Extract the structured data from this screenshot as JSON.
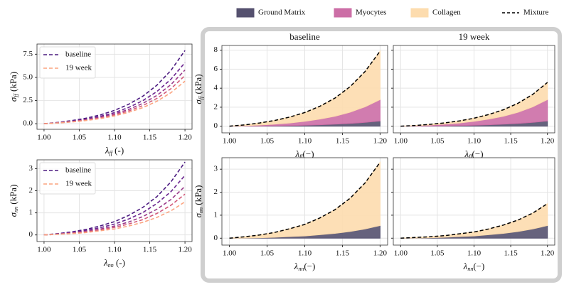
{
  "chart_data": [
    {
      "type": "line",
      "legend": "upper left",
      "x": [
        1,
        1.02,
        1.04,
        1.06,
        1.08,
        1.1,
        1.12,
        1.14,
        1.16,
        1.18,
        1.2
      ],
      "xlim": [
        0.99,
        1.21
      ],
      "ylim": [
        -0.6,
        8.6
      ],
      "xticks": [
        {
          "value": 1,
          "label": "1.00"
        },
        1.05,
        {
          "value": 1.1,
          "label": "1.10"
        },
        1.15,
        {
          "value": 1.2,
          "label": "1.20"
        }
      ],
      "yticks": [
        {
          "value": 0,
          "label": "0.0"
        },
        2.5,
        {
          "value": 5,
          "label": "5.0"
        },
        7.5
      ],
      "xlabel": {
        "base": "λ",
        "sub": "ff",
        "rest": " (-)"
      },
      "ylabel": {
        "base": "σ",
        "sub": "ff",
        "rest": " (kPa)"
      },
      "grid": true,
      "series": [
        {
          "name": "baseline",
          "color": "#4b1a80",
          "values": [
            0,
            0.14,
            0.34,
            0.6,
            0.96,
            1.44,
            2.1,
            2.96,
            4.15,
            5.75,
            7.9
          ]
        },
        {
          "color": "#6b2590",
          "values": [
            0,
            0.12,
            0.28,
            0.5,
            0.81,
            1.2,
            1.75,
            2.48,
            3.47,
            4.8,
            6.6
          ]
        },
        {
          "color": "#9a3a8a",
          "values": [
            0,
            0.1,
            0.25,
            0.44,
            0.71,
            1.06,
            1.54,
            2.18,
            3.05,
            4.22,
            5.8
          ]
        },
        {
          "color": "#d25a7a",
          "values": [
            0,
            0.09,
            0.22,
            0.4,
            0.63,
            0.95,
            1.38,
            1.95,
            2.73,
            3.78,
            5.2
          ]
        },
        {
          "name": "19 week",
          "color": "#fba37f",
          "values": [
            0,
            0.08,
            0.2,
            0.35,
            0.56,
            0.84,
            1.23,
            1.73,
            2.42,
            3.35,
            4.6
          ]
        }
      ]
    },
    {
      "type": "line",
      "legend": "upper left",
      "x": [
        1,
        1.02,
        1.04,
        1.06,
        1.08,
        1.1,
        1.12,
        1.14,
        1.16,
        1.18,
        1.2
      ],
      "xlim": [
        0.99,
        1.21
      ],
      "ylim": [
        -0.3,
        3.4
      ],
      "xticks": [
        {
          "value": 1,
          "label": "1.00"
        },
        1.05,
        {
          "value": 1.1,
          "label": "1.10"
        },
        1.15,
        {
          "value": 1.2,
          "label": "1.20"
        }
      ],
      "yticks": [
        0,
        1,
        2,
        3
      ],
      "xlabel": {
        "base": "λ",
        "sub": "nn",
        "rest": " (-)"
      },
      "ylabel": {
        "base": "σ",
        "sub": "nn",
        "rest": " (kPa)"
      },
      "grid": true,
      "series": [
        {
          "name": "baseline",
          "color": "#4b1a80",
          "values": [
            0,
            0.06,
            0.14,
            0.25,
            0.41,
            0.6,
            0.88,
            1.24,
            1.73,
            2.4,
            3.3
          ]
        },
        {
          "color": "#6b2590",
          "values": [
            0,
            0.05,
            0.12,
            0.21,
            0.33,
            0.49,
            0.72,
            1.01,
            1.42,
            1.96,
            2.7
          ]
        },
        {
          "color": "#9a3a8a",
          "values": [
            0,
            0.04,
            0.09,
            0.17,
            0.27,
            0.4,
            0.58,
            0.83,
            1.16,
            1.6,
            2.2
          ]
        },
        {
          "color": "#d25a7a",
          "values": [
            0,
            0.03,
            0.08,
            0.14,
            0.23,
            0.34,
            0.49,
            0.69,
            0.97,
            1.34,
            1.85
          ]
        },
        {
          "name": "19 week",
          "color": "#fba37f",
          "values": [
            0,
            0.03,
            0.06,
            0.11,
            0.19,
            0.27,
            0.4,
            0.57,
            0.79,
            1.09,
            1.5
          ]
        }
      ]
    },
    {
      "type": "stackedarea",
      "title": "baseline",
      "x": [
        1,
        1.02,
        1.04,
        1.06,
        1.08,
        1.1,
        1.12,
        1.14,
        1.16,
        1.18,
        1.2
      ],
      "xlim": [
        0.99,
        1.21
      ],
      "ylim": [
        -0.7,
        8.5
      ],
      "xticks": [
        {
          "value": 1,
          "label": "1.00"
        },
        1.05,
        {
          "value": 1.1,
          "label": "1.10"
        },
        1.15,
        {
          "value": 1.2,
          "label": "1.20"
        }
      ],
      "yticks": [
        0,
        2,
        4,
        6,
        8
      ],
      "xlabel": {
        "base": "λ",
        "sub": "ff",
        "rest": "(−)"
      },
      "ylabel": {
        "base": "σ",
        "sub": "ff",
        "rest": " (kPa)"
      },
      "grid": true,
      "series": [
        {
          "name": "Ground Matrix",
          "color": "#55516f",
          "values": [
            0,
            0.01,
            0.02,
            0.04,
            0.07,
            0.1,
            0.15,
            0.21,
            0.29,
            0.4,
            0.55
          ]
        },
        {
          "name": "Myocytes",
          "color": "#cc6ea6",
          "values": [
            0,
            0.04,
            0.1,
            0.17,
            0.27,
            0.41,
            0.6,
            0.84,
            1.18,
            1.64,
            2.25
          ]
        },
        {
          "name": "Collagen",
          "color": "#fddcae",
          "values": [
            0,
            0.09,
            0.22,
            0.39,
            0.62,
            0.93,
            1.35,
            1.91,
            2.68,
            3.71,
            5.1
          ]
        },
        {
          "name": "Mixture",
          "color": "#000000",
          "dashed": true,
          "values": [
            0,
            0.14,
            0.34,
            0.6,
            0.96,
            1.44,
            2.1,
            2.96,
            4.15,
            5.75,
            7.9
          ]
        }
      ]
    },
    {
      "type": "stackedarea",
      "title": "19 week",
      "show_yticklabels": false,
      "x": [
        1,
        1.02,
        1.04,
        1.06,
        1.08,
        1.1,
        1.12,
        1.14,
        1.16,
        1.18,
        1.2
      ],
      "xlim": [
        0.99,
        1.21
      ],
      "ylim": [
        -0.7,
        8.5
      ],
      "xticks": [
        {
          "value": 1,
          "label": "1.00"
        },
        1.05,
        {
          "value": 1.1,
          "label": "1.10"
        },
        1.15,
        {
          "value": 1.2,
          "label": "1.20"
        }
      ],
      "yticks": [
        0,
        2,
        4,
        6,
        8
      ],
      "xlabel": {
        "base": "λ",
        "sub": "ff",
        "rest": "(−)"
      },
      "grid": true,
      "series": [
        {
          "name": "Ground Matrix",
          "color": "#55516f",
          "values": [
            0,
            0.01,
            0.02,
            0.04,
            0.07,
            0.1,
            0.15,
            0.21,
            0.29,
            0.4,
            0.55
          ]
        },
        {
          "name": "Myocytes",
          "color": "#cc6ea6",
          "values": [
            0,
            0.04,
            0.1,
            0.17,
            0.27,
            0.41,
            0.6,
            0.84,
            1.18,
            1.64,
            2.25
          ]
        },
        {
          "name": "Collagen",
          "color": "#fddcae",
          "values": [
            0,
            0.03,
            0.08,
            0.14,
            0.22,
            0.33,
            0.48,
            0.68,
            0.95,
            1.31,
            1.8
          ]
        },
        {
          "name": "Mixture",
          "color": "#000000",
          "dashed": true,
          "values": [
            0,
            0.08,
            0.2,
            0.35,
            0.56,
            0.84,
            1.23,
            1.73,
            2.42,
            3.35,
            4.6
          ]
        }
      ]
    },
    {
      "type": "stackedarea",
      "x": [
        1,
        1.02,
        1.04,
        1.06,
        1.08,
        1.1,
        1.12,
        1.14,
        1.16,
        1.18,
        1.2
      ],
      "xlim": [
        0.99,
        1.21
      ],
      "ylim": [
        -0.3,
        3.5
      ],
      "xticks": [
        {
          "value": 1,
          "label": "1.00"
        },
        1.05,
        {
          "value": 1.1,
          "label": "1.10"
        },
        1.15,
        {
          "value": 1.2,
          "label": "1.20"
        }
      ],
      "yticks": [
        0,
        1,
        2,
        3
      ],
      "xlabel": {
        "base": "λ",
        "sub": "nn",
        "rest": "(−)"
      },
      "ylabel": {
        "base": "σ",
        "sub": "nn",
        "rest": " (kPa)"
      },
      "grid": true,
      "series": [
        {
          "name": "Ground Matrix",
          "color": "#55516f",
          "values": [
            0,
            0.01,
            0.02,
            0.04,
            0.07,
            0.1,
            0.15,
            0.21,
            0.29,
            0.4,
            0.55
          ]
        },
        {
          "name": "Collagen",
          "color": "#fddcae",
          "values": [
            0,
            0.05,
            0.12,
            0.21,
            0.34,
            0.5,
            0.73,
            1.03,
            1.44,
            2.0,
            2.75
          ]
        },
        {
          "name": "Mixture",
          "color": "#000000",
          "dashed": true,
          "values": [
            0,
            0.06,
            0.14,
            0.25,
            0.41,
            0.6,
            0.88,
            1.24,
            1.73,
            2.4,
            3.3
          ]
        }
      ]
    },
    {
      "type": "stackedarea",
      "show_yticklabels": false,
      "x": [
        1,
        1.02,
        1.04,
        1.06,
        1.08,
        1.1,
        1.12,
        1.14,
        1.16,
        1.18,
        1.2
      ],
      "xlim": [
        0.99,
        1.21
      ],
      "ylim": [
        -0.3,
        3.5
      ],
      "xticks": [
        {
          "value": 1,
          "label": "1.00"
        },
        1.05,
        {
          "value": 1.1,
          "label": "1.10"
        },
        1.15,
        {
          "value": 1.2,
          "label": "1.20"
        }
      ],
      "yticks": [
        0,
        1,
        2,
        3
      ],
      "xlabel": {
        "base": "λ",
        "sub": "nn",
        "rest": "(−)"
      },
      "grid": true,
      "series": [
        {
          "name": "Ground Matrix",
          "color": "#55516f",
          "values": [
            0,
            0.01,
            0.02,
            0.04,
            0.07,
            0.1,
            0.15,
            0.21,
            0.29,
            0.4,
            0.55
          ]
        },
        {
          "name": "Collagen",
          "color": "#fddcae",
          "values": [
            0,
            0.02,
            0.04,
            0.07,
            0.12,
            0.17,
            0.25,
            0.36,
            0.5,
            0.69,
            0.95
          ]
        },
        {
          "name": "Mixture",
          "color": "#000000",
          "dashed": true,
          "values": [
            0,
            0.03,
            0.06,
            0.11,
            0.19,
            0.27,
            0.4,
            0.57,
            0.79,
            1.09,
            1.5
          ]
        }
      ]
    }
  ]
}
